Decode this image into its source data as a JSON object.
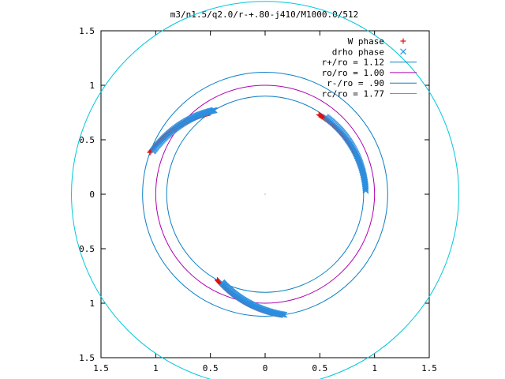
{
  "chart_data": {
    "type": "scatter",
    "title": "m3/n1.5/q2.0/r-+.80-j410/M1000.0/512",
    "xlim": [
      -1.5,
      1.5
    ],
    "ylim": [
      -1.5,
      1.5
    ],
    "x_ticks": [
      -1.5,
      -1,
      -0.5,
      0,
      0.5,
      1,
      1.5
    ],
    "x_tick_labels": [
      "1.5",
      "1",
      "0.5",
      "0",
      "0.5",
      "1",
      "1.5"
    ],
    "y_ticks": [
      1.5,
      1,
      0.5,
      0,
      -0.5,
      -1,
      -1.5
    ],
    "y_tick_labels": [
      "1.5",
      "1",
      "0.5",
      "0",
      "0.5",
      "1",
      "1.5"
    ],
    "legend_position": "top-right",
    "grid": false,
    "circles": [
      {
        "label": "r+/ro = 1.12",
        "radius": 1.12,
        "color": "#0b7fc7"
      },
      {
        "label": "ro/ro = 1.00",
        "radius": 1.0,
        "color": "#b000b0"
      },
      {
        "label": "r-/ro = .90",
        "radius": 0.9,
        "color": "#0b7fc7"
      },
      {
        "label": "rc/ro = 1.77",
        "radius": 1.77,
        "color": "#00c8d8"
      }
    ],
    "series": [
      {
        "name": "W phase",
        "marker": "+",
        "color": "#e01010",
        "arms": [
          {
            "r_start": 1.12,
            "r_end": 0.9,
            "theta_start": 160,
            "theta_end": 124
          },
          {
            "r_start": 0.88,
            "r_end": 0.92,
            "theta_start": 56,
            "theta_end": 6
          },
          {
            "r_start": 0.9,
            "r_end": 1.12,
            "theta_start": 241,
            "theta_end": 278
          }
        ]
      },
      {
        "name": "drho phase",
        "marker": "x",
        "color": "#2b8fe0",
        "arms": [
          {
            "r_start": 1.1,
            "r_end": 0.9,
            "theta_start": 159,
            "theta_end": 121
          },
          {
            "r_start": 0.9,
            "r_end": 0.92,
            "theta_start": 52,
            "theta_end": 2
          },
          {
            "r_start": 0.9,
            "r_end": 1.12,
            "theta_start": 244,
            "theta_end": 279
          }
        ]
      }
    ],
    "center_marker": {
      "x": 0,
      "y": 0
    }
  }
}
